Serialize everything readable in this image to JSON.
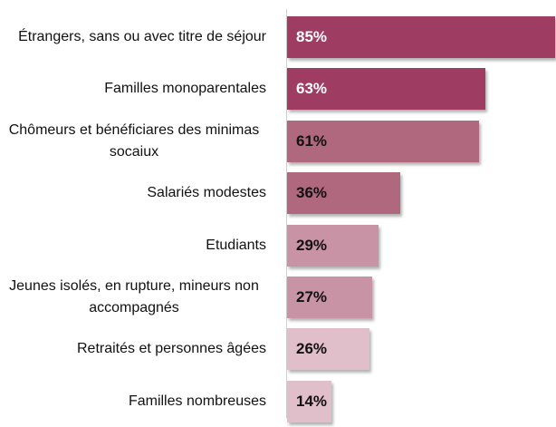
{
  "chart_data": {
    "type": "bar",
    "orientation": "horizontal",
    "categories": [
      "Étrangers, sans ou avec titre de séjour",
      "Familles monoparentales",
      "Chômeurs et bénéficiares des minimas socaiux",
      "Salariés modestes",
      "Etudiants",
      "Jeunes isolés, en rupture, mineurs non accompagnés",
      "Retraités et personnes âgées",
      "Familles nombreuses"
    ],
    "values": [
      85,
      63,
      61,
      36,
      29,
      27,
      26,
      14
    ],
    "value_labels": [
      "85%",
      "63%",
      "61%",
      "36%",
      "29%",
      "27%",
      "26%",
      "14%"
    ],
    "colors": [
      "#9e3d61",
      "#9e3d61",
      "#b0687f",
      "#b0687f",
      "#c993a6",
      "#c993a6",
      "#e0bfca",
      "#e0bfca"
    ]
  }
}
